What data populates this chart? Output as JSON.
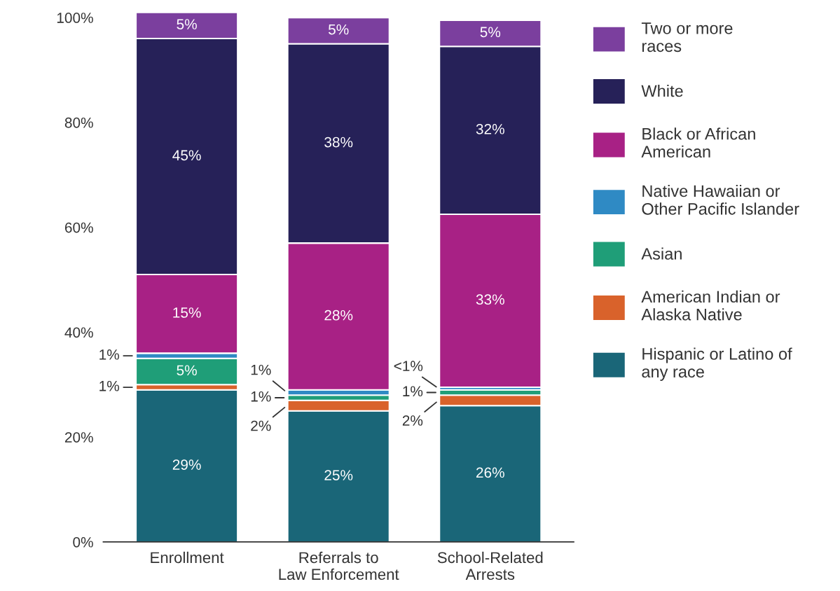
{
  "chart_data": {
    "type": "bar",
    "stacked": true,
    "categories": [
      "Enrollment",
      "Referrals to\nLaw Enforcement",
      "School-Related\nArrests"
    ],
    "series": [
      {
        "name": "Hispanic or Latino of\nany race",
        "color": "#1a6678",
        "values": [
          29,
          25,
          26
        ],
        "value_labels": [
          "29%",
          "25%",
          "26%"
        ]
      },
      {
        "name": "American Indian or\nAlaska Native",
        "color": "#d9622b",
        "values": [
          1,
          2,
          2
        ],
        "value_labels": [
          "1%",
          "2%",
          "2%"
        ]
      },
      {
        "name": "Asian",
        "color": "#1f9e78",
        "values": [
          5,
          1,
          1
        ],
        "value_labels": [
          "5%",
          "1%",
          "1%"
        ]
      },
      {
        "name": "Native Hawaiian or\nOther Pacific Islander",
        "color": "#2f8ac4",
        "values": [
          1,
          1,
          0.5
        ],
        "value_labels": [
          "1%",
          "1%",
          "<1%"
        ]
      },
      {
        "name": "Black or African\nAmerican",
        "color": "#a82185",
        "values": [
          15,
          28,
          33
        ],
        "value_labels": [
          "15%",
          "28%",
          "33%"
        ]
      },
      {
        "name": "White",
        "color": "#262158",
        "values": [
          45,
          38,
          32
        ],
        "value_labels": [
          "45%",
          "38%",
          "32%"
        ]
      },
      {
        "name": "Two or more\nraces",
        "color": "#7b3f9e",
        "values": [
          5,
          5,
          5
        ],
        "value_labels": [
          "5%",
          "5%",
          "5%"
        ]
      }
    ],
    "ylim": [
      0,
      102
    ],
    "yticks": [
      {
        "value": 0,
        "label": "0%"
      },
      {
        "value": 20,
        "label": "20%"
      },
      {
        "value": 40,
        "label": "40%"
      },
      {
        "value": 60,
        "label": "60%"
      },
      {
        "value": 80,
        "label": "80%"
      },
      {
        "value": 100,
        "label": "100%"
      }
    ],
    "grid": false,
    "legend": "right"
  }
}
